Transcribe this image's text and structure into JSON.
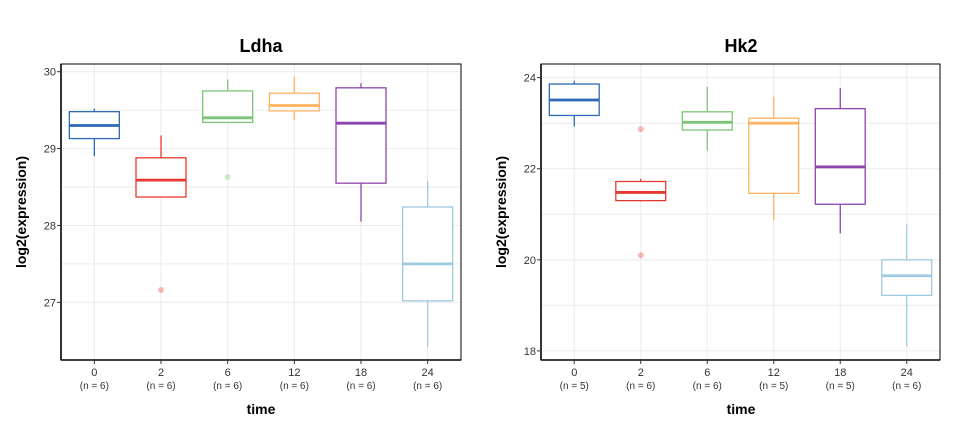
{
  "chart_data": [
    {
      "type": "boxplot",
      "title": "Ldha",
      "xlabel": "time",
      "ylabel": "log2(expression)",
      "ylim": [
        26.25,
        30.1
      ],
      "yticks": [
        27,
        28,
        29,
        30
      ],
      "grid": true,
      "legend": "none",
      "categories": [
        "0",
        "2",
        "6",
        "12",
        "18",
        "24"
      ],
      "counts": [
        "(n = 6)",
        "(n = 6)",
        "(n = 6)",
        "(n = 6)",
        "(n = 6)",
        "(n = 6)"
      ],
      "colors": [
        "#2c6ab5",
        "#e8392e",
        "#7cc576",
        "#fdb261",
        "#8e44ad",
        "#9ecae1"
      ],
      "boxes": [
        {
          "category": "0",
          "whisker_low": 28.9,
          "q1": 29.13,
          "median": 29.3,
          "q3": 29.48,
          "whisker_high": 29.52,
          "outliers": []
        },
        {
          "category": "2",
          "whisker_low": 28.37,
          "q1": 28.37,
          "median": 28.59,
          "q3": 28.88,
          "whisker_high": 29.17,
          "outliers": [
            27.16
          ]
        },
        {
          "category": "6",
          "whisker_low": 29.34,
          "q1": 29.34,
          "median": 29.4,
          "q3": 29.75,
          "whisker_high": 29.9,
          "outliers": [
            28.63
          ]
        },
        {
          "category": "12",
          "whisker_low": 29.37,
          "q1": 29.49,
          "median": 29.56,
          "q3": 29.72,
          "whisker_high": 29.93,
          "outliers": []
        },
        {
          "category": "18",
          "whisker_low": 28.05,
          "q1": 28.55,
          "median": 29.33,
          "q3": 29.79,
          "whisker_high": 29.85,
          "outliers": []
        },
        {
          "category": "24",
          "whisker_low": 26.42,
          "q1": 27.02,
          "median": 27.5,
          "q3": 28.24,
          "whisker_high": 28.58,
          "outliers": []
        }
      ]
    },
    {
      "type": "boxplot",
      "title": "Hk2",
      "xlabel": "time",
      "ylabel": "log2(expression)",
      "ylim": [
        17.8,
        24.3
      ],
      "yticks": [
        18,
        20,
        22,
        24
      ],
      "grid": true,
      "legend": "none",
      "categories": [
        "0",
        "2",
        "6",
        "12",
        "18",
        "24"
      ],
      "counts": [
        "(n = 5)",
        "(n = 6)",
        "(n = 6)",
        "(n = 5)",
        "(n = 5)",
        "(n = 6)"
      ],
      "colors": [
        "#2c6ab5",
        "#e8392e",
        "#7cc576",
        "#fdb261",
        "#8e44ad",
        "#9ecae1"
      ],
      "boxes": [
        {
          "category": "0",
          "whisker_low": 22.93,
          "q1": 23.17,
          "median": 23.51,
          "q3": 23.86,
          "whisker_high": 23.93,
          "outliers": []
        },
        {
          "category": "2",
          "whisker_low": 21.28,
          "q1": 21.3,
          "median": 21.48,
          "q3": 21.72,
          "whisker_high": 21.78,
          "outliers": [
            22.87,
            20.1
          ]
        },
        {
          "category": "6",
          "whisker_low": 22.4,
          "q1": 22.85,
          "median": 23.02,
          "q3": 23.25,
          "whisker_high": 23.8,
          "outliers": []
        },
        {
          "category": "12",
          "whisker_low": 20.87,
          "q1": 21.46,
          "median": 23.0,
          "q3": 23.11,
          "whisker_high": 23.58,
          "outliers": []
        },
        {
          "category": "18",
          "whisker_low": 20.58,
          "q1": 21.22,
          "median": 22.04,
          "q3": 23.32,
          "whisker_high": 23.77,
          "outliers": []
        },
        {
          "category": "24",
          "whisker_low": 18.1,
          "q1": 19.22,
          "median": 19.65,
          "q3": 20.0,
          "whisker_high": 20.78,
          "outliers": []
        }
      ]
    }
  ]
}
